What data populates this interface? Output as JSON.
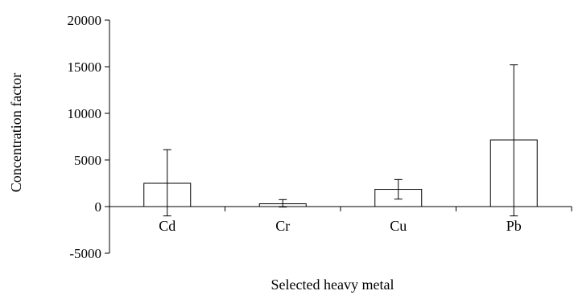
{
  "chart_data": {
    "type": "bar",
    "title": "",
    "xlabel": "Selected heavy metal",
    "ylabel": "Concentration factor",
    "categories": [
      "Cd",
      "Cr",
      "Cu",
      "Pb"
    ],
    "values": [
      2500,
      300,
      1850,
      7150
    ],
    "error_low": [
      -1000,
      -50,
      800,
      -1000
    ],
    "error_high": [
      6100,
      750,
      2900,
      15200
    ],
    "y_ticks": [
      20000,
      15000,
      10000,
      5000,
      0,
      -5000
    ],
    "y_tick_labels": [
      "20000",
      "15000",
      "10000",
      "5000",
      "0",
      "-5000"
    ],
    "ylim": [
      -5000,
      20000
    ],
    "grid": false,
    "legend": "none",
    "bar_fill": "#ffffff",
    "bar_stroke": "#000000"
  }
}
